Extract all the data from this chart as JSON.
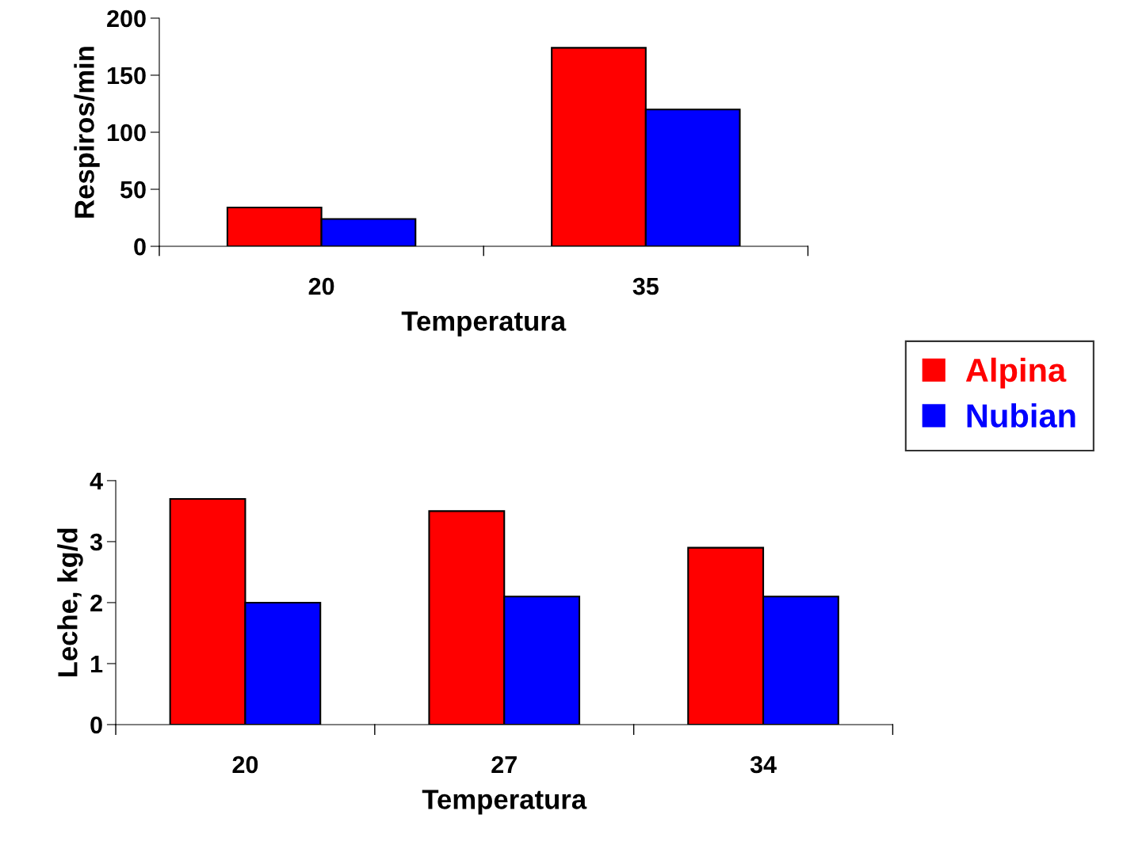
{
  "chart_data": [
    {
      "type": "bar",
      "categories": [
        "20",
        "35"
      ],
      "xlabel": "Temperatura",
      "ylabel": "Respiros/min",
      "ylim": [
        0,
        200
      ],
      "yticks": [
        0,
        50,
        100,
        150,
        200
      ],
      "grid": false,
      "legend": "right",
      "series": [
        {
          "name": "Alpina",
          "color": "#ff0000",
          "values": [
            34,
            174
          ]
        },
        {
          "name": "Nubian",
          "color": "#0000ff",
          "values": [
            24,
            120
          ]
        }
      ]
    },
    {
      "type": "bar",
      "categories": [
        "20",
        "27",
        "34"
      ],
      "xlabel": "Temperatura",
      "ylabel": "Leche, kg/d",
      "ylim": [
        0,
        4
      ],
      "yticks": [
        0,
        1,
        2,
        3,
        4
      ],
      "grid": false,
      "series": [
        {
          "color": "#ff0000",
          "values": [
            3.7,
            3.5,
            2.9
          ]
        },
        {
          "color": "#0000ff",
          "values": [
            2.0,
            2.1,
            2.1
          ]
        }
      ]
    }
  ]
}
